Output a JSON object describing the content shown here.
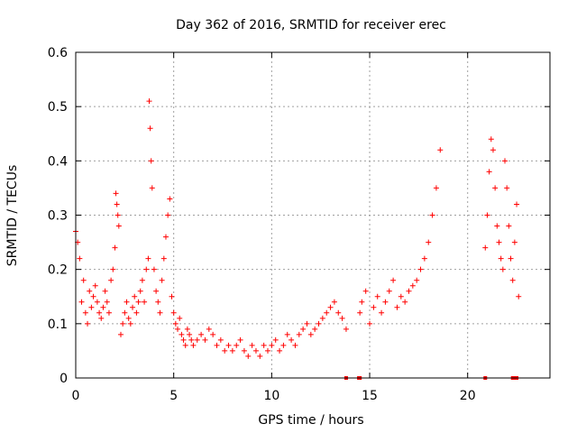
{
  "chart_data": {
    "type": "scatter",
    "title": "Day 362 of 2016, SRMTID for receiver erec",
    "xlabel": "GPS time / hours",
    "ylabel": "SRMTID / TECUs",
    "xlim": [
      0,
      24.2
    ],
    "ylim": [
      0,
      0.6
    ],
    "xticks": [
      0,
      5,
      10,
      15,
      20
    ],
    "yticks": [
      0,
      0.1,
      0.2,
      0.3,
      0.4,
      0.5,
      0.6
    ],
    "xtick_labels": [
      "0",
      "5",
      "10",
      "15",
      "20"
    ],
    "ytick_labels": [
      "0",
      "0.1",
      "0.2",
      "0.3",
      "0.4",
      "0.5",
      "0.6"
    ],
    "grid": true,
    "marker": "+",
    "color": "#ff0000",
    "series": [
      {
        "name": "SRMTID",
        "x": [
          0.0,
          0.1,
          0.2,
          0.3,
          0.4,
          0.5,
          0.6,
          0.7,
          0.8,
          0.9,
          1.0,
          1.1,
          1.2,
          1.3,
          1.4,
          1.5,
          1.6,
          1.7,
          1.8,
          1.9,
          2.0,
          2.05,
          2.1,
          2.15,
          2.2,
          2.3,
          2.4,
          2.5,
          2.6,
          2.7,
          2.8,
          2.9,
          3.0,
          3.1,
          3.2,
          3.3,
          3.4,
          3.5,
          3.6,
          3.7,
          3.75,
          3.8,
          3.85,
          3.9,
          4.0,
          4.1,
          4.2,
          4.3,
          4.4,
          4.5,
          4.6,
          4.7,
          4.8,
          4.9,
          5.0,
          5.1,
          5.2,
          5.3,
          5.4,
          5.5,
          5.6,
          5.7,
          5.8,
          5.9,
          6.0,
          6.2,
          6.4,
          6.6,
          6.8,
          7.0,
          7.2,
          7.4,
          7.6,
          7.8,
          8.0,
          8.2,
          8.4,
          8.6,
          8.8,
          9.0,
          9.2,
          9.4,
          9.6,
          9.8,
          10.0,
          10.2,
          10.4,
          10.6,
          10.8,
          11.0,
          11.2,
          11.4,
          11.6,
          11.8,
          12.0,
          12.2,
          12.4,
          12.6,
          12.8,
          13.0,
          13.2,
          13.4,
          13.6,
          13.8,
          14.5,
          14.6,
          14.8,
          15.0,
          15.2,
          15.4,
          15.6,
          15.8,
          16.0,
          16.2,
          16.4,
          16.6,
          16.8,
          17.0,
          17.2,
          17.4,
          17.6,
          17.8,
          18.0,
          18.2,
          18.4,
          18.6,
          20.9,
          21.0,
          21.1,
          21.2,
          21.3,
          21.4,
          21.5,
          21.6,
          21.7,
          21.8,
          21.9,
          22.0,
          22.1,
          22.2,
          22.3,
          22.4,
          22.5,
          22.6
        ],
        "y": [
          0.27,
          0.25,
          0.22,
          0.14,
          0.18,
          0.12,
          0.1,
          0.16,
          0.13,
          0.15,
          0.17,
          0.14,
          0.12,
          0.11,
          0.13,
          0.16,
          0.14,
          0.12,
          0.18,
          0.2,
          0.24,
          0.34,
          0.32,
          0.3,
          0.28,
          0.08,
          0.1,
          0.12,
          0.14,
          0.11,
          0.1,
          0.13,
          0.15,
          0.12,
          0.14,
          0.16,
          0.18,
          0.14,
          0.2,
          0.22,
          0.51,
          0.46,
          0.4,
          0.35,
          0.2,
          0.16,
          0.14,
          0.12,
          0.18,
          0.22,
          0.26,
          0.3,
          0.33,
          0.15,
          0.12,
          0.1,
          0.09,
          0.11,
          0.08,
          0.07,
          0.06,
          0.09,
          0.08,
          0.07,
          0.06,
          0.07,
          0.08,
          0.07,
          0.09,
          0.08,
          0.06,
          0.07,
          0.05,
          0.06,
          0.05,
          0.06,
          0.07,
          0.05,
          0.04,
          0.06,
          0.05,
          0.04,
          0.06,
          0.05,
          0.06,
          0.07,
          0.05,
          0.06,
          0.08,
          0.07,
          0.06,
          0.08,
          0.09,
          0.1,
          0.08,
          0.09,
          0.1,
          0.11,
          0.12,
          0.13,
          0.14,
          0.12,
          0.11,
          0.09,
          0.12,
          0.14,
          0.16,
          0.1,
          0.13,
          0.15,
          0.12,
          0.14,
          0.16,
          0.18,
          0.13,
          0.15,
          0.14,
          0.16,
          0.17,
          0.18,
          0.2,
          0.22,
          0.25,
          0.3,
          0.35,
          0.42,
          0.24,
          0.3,
          0.38,
          0.44,
          0.42,
          0.35,
          0.28,
          0.25,
          0.22,
          0.2,
          0.4,
          0.35,
          0.28,
          0.22,
          0.18,
          0.25,
          0.32,
          0.15
        ],
        "zero_flags_x": [
          13.8,
          14.45,
          14.5,
          20.9,
          22.3,
          22.4,
          22.5
        ]
      }
    ]
  }
}
